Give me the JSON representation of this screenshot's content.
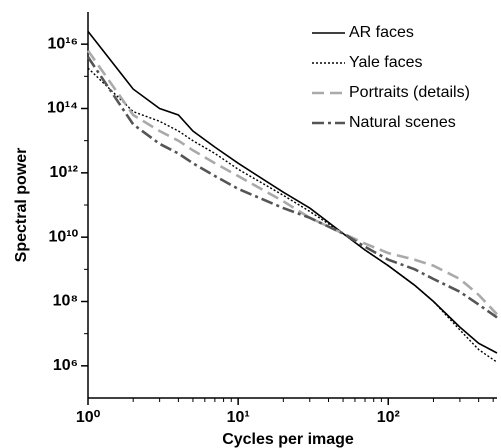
{
  "chart_data": {
    "type": "line",
    "x_label": "Cycles per image",
    "y_label": "Spectral power",
    "x": [
      1,
      2,
      3,
      4,
      5,
      7,
      10,
      20,
      30,
      50,
      70,
      100,
      150,
      200,
      300,
      400,
      530
    ],
    "series": [
      {
        "name": "AR faces",
        "color": "#000000",
        "dash": "solid",
        "values": [
          2.5e+16,
          400000000000000.0,
          100000000000000.0,
          63000000000000.0,
          20000000000000.0,
          6300000000000.0,
          2000000000000.0,
          250000000000.0,
          80000000000.0,
          13000000000.0,
          4000000000.0,
          1300000000.0,
          320000000.0,
          100000000.0,
          16000000.0,
          5000000.0,
          2500000.0
        ]
      },
      {
        "name": "Yale faces",
        "color": "#000000",
        "dash": "dotted",
        "values": [
          1800000000000000.0,
          80000000000000.0,
          40000000000000.0,
          20000000000000.0,
          10000000000000.0,
          4000000000000.0,
          1300000000000.0,
          200000000000.0,
          63000000000.0,
          13000000000.0,
          4000000000.0,
          1300000000.0,
          320000000.0,
          100000000.0,
          13000000.0,
          3200000.0,
          1300000.0
        ]
      },
      {
        "name": "Portraits (details)",
        "color": "#aaaaaa",
        "dash": "dashed",
        "values": [
          6300000000000000.0,
          63000000000000.0,
          20000000000000.0,
          10000000000000.0,
          5000000000000.0,
          2000000000000.0,
          800000000000.0,
          130000000000.0,
          40000000000.0,
          13000000000.0,
          6300000000.0,
          3200000000.0,
          2000000000.0,
          1300000000.0,
          500000000.0,
          160000000.0,
          40000000.0
        ]
      },
      {
        "name": "Natural scenes",
        "color": "#555555",
        "dash": "dashdot",
        "values": [
          4000000000000000.0,
          32000000000000.0,
          8000000000000.0,
          4000000000000.0,
          2000000000000.0,
          800000000000.0,
          320000000000.0,
          80000000000.0,
          40000000000.0,
          13000000000.0,
          5000000000.0,
          2000000000.0,
          1000000000.0,
          500000000.0,
          200000000.0,
          80000000.0,
          32000000.0
        ]
      }
    ],
    "xscale": "log",
    "yscale": "log",
    "xlim": [
      1,
      530
    ],
    "ylim": [
      100000.0,
      1e+17
    ],
    "xticks": [
      {
        "value": 1,
        "label": "10⁰"
      },
      {
        "value": 10,
        "label": "10¹"
      },
      {
        "value": 100,
        "label": "10²"
      }
    ],
    "yticks": [
      {
        "value": 1000000.0,
        "label": "10⁶"
      },
      {
        "value": 100000000.0,
        "label": "10⁸"
      },
      {
        "value": 10000000000.0,
        "label": "10¹⁰"
      },
      {
        "value": 1000000000000.0,
        "label": "10¹²"
      },
      {
        "value": 100000000000000.0,
        "label": "10¹⁴"
      },
      {
        "value": 1e+16,
        "label": "10¹⁶"
      }
    ],
    "xminor": [
      2,
      3,
      4,
      5,
      6,
      7,
      8,
      9,
      20,
      30,
      40,
      50,
      60,
      70,
      80,
      90,
      200,
      300,
      400,
      500
    ],
    "yminor": [
      10000000.0,
      1000000000.0,
      100000000000.0,
      10000000000000.0,
      1000000000000000.0
    ],
    "legend": "top-right",
    "grid": false
  }
}
